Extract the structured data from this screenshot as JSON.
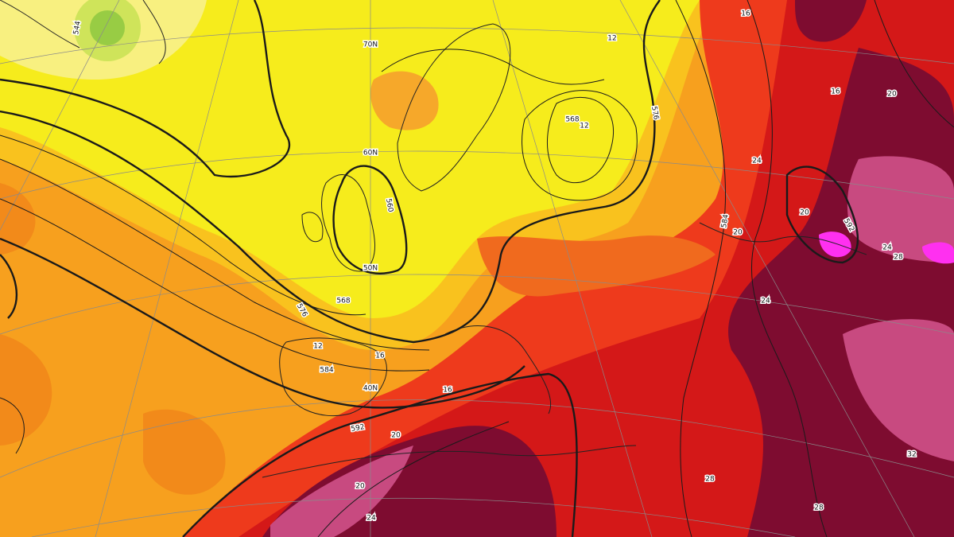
{
  "contour_labels": [
    "544",
    "576",
    "568",
    "560",
    "568",
    "12",
    "576",
    "584",
    "584",
    "592",
    "592",
    "12",
    "16",
    "16",
    "20",
    "20",
    "24",
    "24",
    "24",
    "28",
    "28",
    "28",
    "32",
    "16",
    "20",
    "20",
    "24",
    "12",
    "16",
    "20"
  ],
  "latitude_labels": [
    "70N",
    "60N",
    "50N",
    "40N"
  ]
}
